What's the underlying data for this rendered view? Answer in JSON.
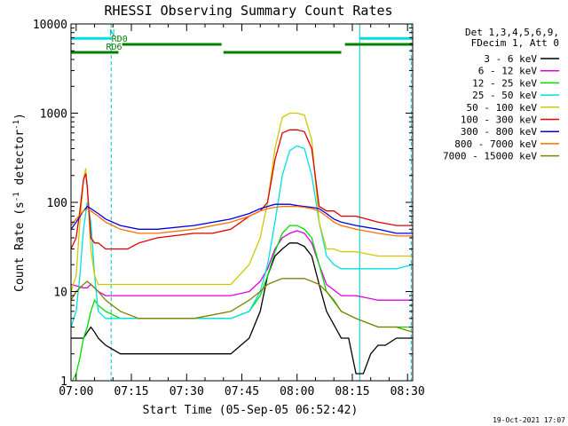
{
  "chart_data": {
    "type": "line",
    "title": "RHESSI Observing Summary Count Rates",
    "xlabel": "Start Time (05-Sep-05 06:52:42)",
    "ylabel_main": "Count Rate (s",
    "ylabel_sup1": "-1",
    "ylabel_mid": " detector",
    "ylabel_sup2": "-1",
    "ylabel_end": ")",
    "yscale": "log",
    "ylim": [
      1,
      10000
    ],
    "xlim_minutes": [
      6.6,
      99.4
    ],
    "grid": false,
    "legend_position": "right",
    "yticks": [
      {
        "value": 1,
        "label": "1"
      },
      {
        "value": 10,
        "label": "10"
      },
      {
        "value": 100,
        "label": "100"
      },
      {
        "value": 1000,
        "label": "1000"
      },
      {
        "value": 10000,
        "label": "10000"
      }
    ],
    "xticks": [
      {
        "value": 8,
        "label": "07:00"
      },
      {
        "value": 23,
        "label": "07:15"
      },
      {
        "value": 38,
        "label": "07:30"
      },
      {
        "value": 53,
        "label": "07:45"
      },
      {
        "value": 68,
        "label": "08:00"
      },
      {
        "value": 83,
        "label": "08:15"
      },
      {
        "value": 98,
        "label": "08:30"
      }
    ],
    "legend_header": [
      "Det 1,3,4,5,6,9,",
      "FDecim 1, Att 0"
    ],
    "series": [
      {
        "name": "3 - 6 keV",
        "color": "#000000",
        "x": [
          6.6,
          10,
          11,
          12,
          13,
          14,
          16,
          20,
          25,
          30,
          40,
          50,
          55,
          58,
          60,
          62,
          64,
          66,
          68,
          70,
          72,
          74,
          76,
          80,
          82,
          84,
          86,
          88,
          90,
          92,
          95,
          99.4
        ],
        "y": [
          3,
          3,
          3.5,
          4,
          3.5,
          3,
          2.5,
          2,
          2,
          2,
          2,
          2,
          3,
          6,
          15,
          25,
          30,
          35,
          35,
          32,
          25,
          12,
          6,
          3,
          3,
          1.2,
          1.2,
          2,
          2.5,
          2.5,
          3,
          3
        ]
      },
      {
        "name": "6 - 12 keV",
        "color": "#e000e0",
        "x": [
          6.6,
          10,
          11,
          12,
          13,
          14,
          16,
          20,
          25,
          30,
          40,
          50,
          55,
          58,
          60,
          62,
          64,
          66,
          68,
          70,
          72,
          74,
          76,
          80,
          84,
          90,
          95,
          99.4
        ],
        "y": [
          12,
          11,
          11,
          12,
          11,
          10,
          9,
          9,
          9,
          9,
          9,
          9,
          10,
          13,
          18,
          30,
          40,
          45,
          48,
          45,
          35,
          20,
          12,
          9,
          9,
          8,
          8,
          8
        ]
      },
      {
        "name": "12 - 25 keV",
        "color": "#00dd00",
        "x": [
          6.6,
          7,
          8,
          9,
          10,
          11,
          12,
          13,
          14,
          16,
          20,
          25,
          30,
          40,
          50,
          55,
          58,
          60,
          62,
          64,
          66,
          68,
          70,
          72,
          74,
          76,
          80,
          84,
          90,
          95,
          99.4
        ],
        "y": [
          1,
          1,
          1.2,
          1.8,
          3,
          4,
          6,
          8,
          7,
          6,
          5,
          5,
          5,
          5,
          5,
          6,
          9,
          15,
          28,
          45,
          55,
          55,
          50,
          40,
          20,
          10,
          6,
          5,
          4,
          4,
          4
        ]
      },
      {
        "name": "25 - 50 keV",
        "color": "#00e0e0",
        "x": [
          6.6,
          8,
          9,
          10,
          11,
          12,
          13,
          14,
          16,
          20,
          25,
          30,
          40,
          50,
          55,
          58,
          60,
          62,
          64,
          66,
          68,
          70,
          72,
          74,
          76,
          78,
          80,
          82,
          84,
          90,
          95,
          99.4
        ],
        "y": [
          4,
          6,
          15,
          50,
          100,
          60,
          15,
          6,
          5,
          5,
          5,
          5,
          5,
          5,
          6,
          10,
          20,
          60,
          200,
          380,
          430,
          400,
          200,
          60,
          25,
          20,
          18,
          18,
          18,
          18,
          18,
          20
        ]
      },
      {
        "name": "50 - 100 keV",
        "color": "#d0c800",
        "x": [
          6.6,
          8,
          9,
          10,
          10.6,
          11,
          12,
          13,
          14,
          16,
          20,
          25,
          30,
          40,
          45,
          50,
          55,
          58,
          60,
          62,
          64,
          66,
          68,
          70,
          72,
          74,
          76,
          78,
          80,
          82,
          84,
          90,
          95,
          99.4
        ],
        "y": [
          10,
          15,
          60,
          180,
          240,
          150,
          30,
          15,
          12,
          12,
          12,
          12,
          12,
          12,
          12,
          12,
          20,
          40,
          100,
          400,
          900,
          1000,
          1000,
          950,
          500,
          60,
          30,
          30,
          28,
          28,
          28,
          25,
          25,
          25
        ]
      },
      {
        "name": "100 - 300 keV",
        "color": "#e00000",
        "x": [
          6.6,
          8,
          9,
          10,
          10.6,
          11,
          12,
          13,
          14,
          16,
          20,
          22,
          25,
          30,
          40,
          45,
          50,
          55,
          58,
          60,
          62,
          64,
          66,
          68,
          70,
          72,
          74,
          76,
          78,
          80,
          82,
          84,
          90,
          95,
          99.4
        ],
        "y": [
          30,
          40,
          80,
          180,
          210,
          150,
          40,
          35,
          35,
          30,
          30,
          30,
          35,
          40,
          45,
          45,
          50,
          70,
          80,
          100,
          300,
          600,
          650,
          650,
          620,
          400,
          90,
          80,
          80,
          70,
          70,
          70,
          60,
          55,
          55
        ]
      },
      {
        "name": "300 - 800 keV",
        "color": "#0000e0",
        "x": [
          6.6,
          8,
          10,
          11,
          12,
          14,
          16,
          20,
          25,
          30,
          40,
          50,
          55,
          58,
          60,
          62,
          64,
          66,
          68,
          70,
          72,
          74,
          76,
          78,
          80,
          84,
          90,
          95,
          99.4
        ],
        "y": [
          50,
          60,
          80,
          90,
          85,
          75,
          65,
          55,
          50,
          50,
          55,
          65,
          75,
          85,
          90,
          95,
          95,
          95,
          92,
          90,
          88,
          85,
          75,
          65,
          60,
          55,
          50,
          45,
          45
        ]
      },
      {
        "name": "800 - 7000 keV",
        "color": "#ff7000",
        "x": [
          6.6,
          8,
          10,
          11,
          12,
          14,
          16,
          20,
          25,
          30,
          40,
          50,
          55,
          58,
          60,
          62,
          64,
          66,
          68,
          70,
          72,
          74,
          76,
          78,
          80,
          84,
          90,
          95,
          99.4
        ],
        "y": [
          55,
          65,
          80,
          85,
          80,
          70,
          60,
          50,
          45,
          45,
          50,
          60,
          70,
          80,
          85,
          88,
          90,
          90,
          90,
          88,
          85,
          80,
          70,
          60,
          55,
          50,
          45,
          42,
          42
        ]
      },
      {
        "name": "7000 - 15000 keV",
        "color": "#808000",
        "x": [
          6.6,
          8,
          10,
          11,
          12,
          14,
          16,
          20,
          25,
          30,
          40,
          50,
          55,
          58,
          60,
          62,
          64,
          66,
          68,
          70,
          72,
          74,
          76,
          78,
          80,
          84,
          90,
          95,
          99.4
        ],
        "y": [
          8,
          10,
          12,
          13,
          12,
          10,
          8,
          6,
          5,
          5,
          5,
          6,
          8,
          10,
          12,
          13,
          14,
          14,
          14,
          14,
          13,
          12,
          10,
          8,
          6,
          5,
          4,
          4,
          3.5
        ]
      }
    ],
    "flag_bars": [
      {
        "name": "N",
        "color": "#00e0e0",
        "label_color": "#00c0c0",
        "y": 6900,
        "segments": [
          [
            6.6,
            17.5
          ],
          [
            85,
            99.4
          ]
        ]
      },
      {
        "name": "RD0",
        "color": "#008000",
        "label_color": "#008000",
        "y": 5900,
        "segments": [
          [
            20.5,
            47.5
          ],
          [
            81,
            99.4
          ]
        ]
      },
      {
        "name": "RD6",
        "color": "#008000",
        "label_color": "#008000",
        "y": 4800,
        "segments": [
          [
            6.6,
            19.5
          ],
          [
            48,
            80
          ]
        ]
      }
    ],
    "vertical_lines": [
      {
        "x": 6.6,
        "style": "solid",
        "color": "#00c0c0"
      },
      {
        "x": 17.5,
        "style": "dashed",
        "color": "#00c0c0"
      },
      {
        "x": 85,
        "style": "solid",
        "color": "#00c0c0"
      },
      {
        "x": 99,
        "style": "dashed",
        "color": "#00c0c0"
      }
    ],
    "footer_date": "19-Oct-2021 17:07"
  }
}
